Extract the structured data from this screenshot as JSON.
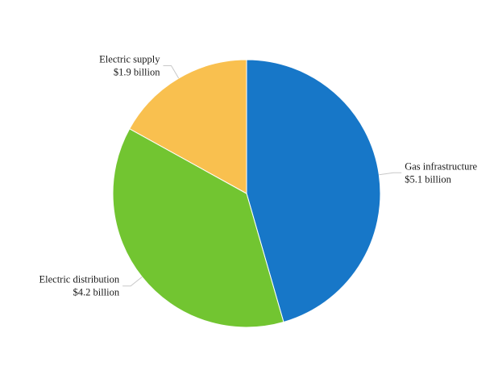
{
  "chart_data": {
    "type": "pie",
    "title": "",
    "slices": [
      {
        "label": "Gas infrastructure",
        "value_text": "$5.1 billion",
        "value": 5.1,
        "color": "#1777C8"
      },
      {
        "label": "Electric distribution",
        "value_text": "$4.2 billion",
        "value": 4.2,
        "color": "#72C531"
      },
      {
        "label": "Electric supply",
        "value_text": "$1.9 billion",
        "value": 1.9,
        "color": "#F9C04F"
      }
    ],
    "start_angle": "top",
    "direction": "clockwise",
    "legend": "none"
  }
}
